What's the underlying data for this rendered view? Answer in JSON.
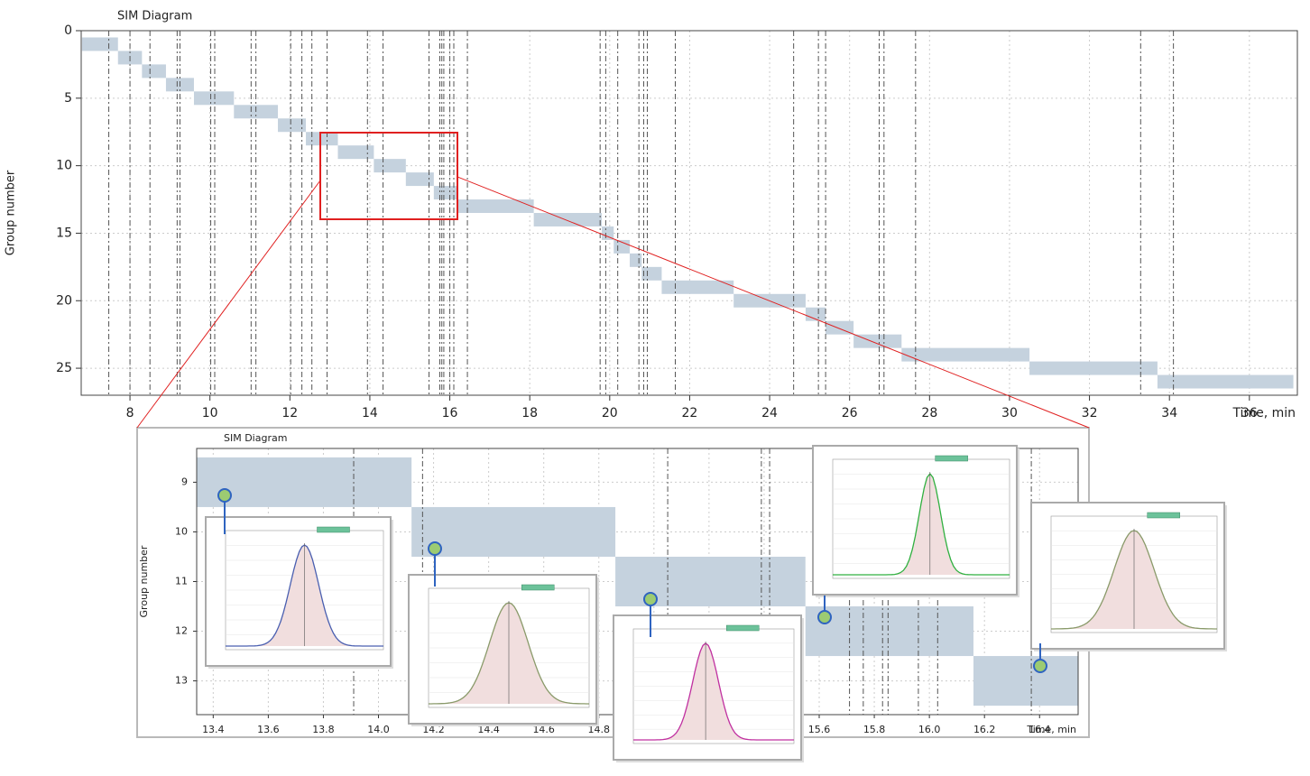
{
  "chart_data": [
    {
      "type": "gantt",
      "title": "SIM Diagram",
      "y_label": "Group number",
      "x_label": "Time, min",
      "groups": [
        1,
        2,
        3,
        4,
        5,
        6,
        7,
        8,
        9,
        10,
        11,
        12,
        13,
        14,
        15,
        16,
        17,
        18,
        19,
        20,
        21,
        22,
        23,
        24,
        25,
        26
      ],
      "start": [
        6.8,
        7.7,
        8.3,
        8.9,
        9.6,
        10.6,
        11.7,
        12.4,
        13.2,
        14.1,
        14.9,
        15.6,
        16.2,
        18.1,
        19.8,
        20.1,
        20.5,
        20.8,
        21.3,
        23.1,
        24.9,
        25.4,
        26.1,
        27.3,
        30.5,
        33.7
      ],
      "end": [
        7.7,
        8.3,
        8.9,
        9.6,
        10.6,
        11.7,
        12.4,
        13.2,
        14.1,
        14.9,
        15.6,
        16.2,
        18.1,
        19.8,
        20.1,
        20.5,
        20.8,
        21.3,
        23.1,
        24.9,
        25.4,
        26.1,
        27.3,
        30.5,
        33.7,
        37.1
      ],
      "marker_times": [
        7.47,
        8.0,
        8.5,
        9.18,
        9.25,
        10.02,
        10.12,
        11.03,
        11.15,
        12.02,
        12.3,
        12.55,
        12.93,
        13.94,
        14.33,
        15.48,
        15.75,
        15.8,
        15.85,
        16.0,
        16.1,
        16.44,
        19.76,
        19.9,
        20.2,
        20.73,
        20.85,
        20.94,
        21.64,
        24.6,
        25.22,
        25.4,
        26.74,
        26.86,
        27.65,
        33.28,
        34.1
      ],
      "color": "#c5d2de",
      "marker_color": "#555555",
      "xlim": [
        6.78,
        37.2
      ],
      "xticks": [
        8,
        10,
        12,
        14,
        16,
        18,
        20,
        22,
        24,
        26,
        28,
        30,
        32,
        34,
        36
      ],
      "ylim": [
        0,
        27
      ],
      "yticks": [
        0,
        5,
        10,
        15,
        20,
        25
      ],
      "y_inverted": true,
      "grid": true
    },
    {
      "type": "gantt",
      "title": "SIM Diagram",
      "y_label": "Group number",
      "x_label": "Time, min",
      "groups": [
        9,
        10,
        11,
        12,
        13
      ],
      "start": [
        13.34,
        14.12,
        14.86,
        15.55,
        16.16
      ],
      "end": [
        14.12,
        14.86,
        15.55,
        16.16,
        16.55
      ],
      "marker_times": [
        13.91,
        14.16,
        15.05,
        15.39,
        15.42,
        15.71,
        15.76,
        15.83,
        15.85,
        15.96,
        16.03,
        16.37
      ],
      "color": "#c5d2de",
      "marker_color": "#555555",
      "xlim": [
        13.34,
        16.54
      ],
      "xticks": [
        13.4,
        13.6,
        13.8,
        {
          "value": 14,
          "label": "14.0"
        },
        14.2,
        14.4,
        14.6,
        14.8,
        {
          "value": 15,
          "label": "15.0"
        },
        15.2,
        15.4,
        15.6,
        15.8,
        {
          "value": 16,
          "label": "16.0"
        },
        16.2,
        16.4
      ],
      "ylim": [
        8.32,
        13.68
      ],
      "yticks": [
        9,
        10,
        11,
        12,
        13
      ],
      "y_inverted": true,
      "grid": true
    }
  ]
}
